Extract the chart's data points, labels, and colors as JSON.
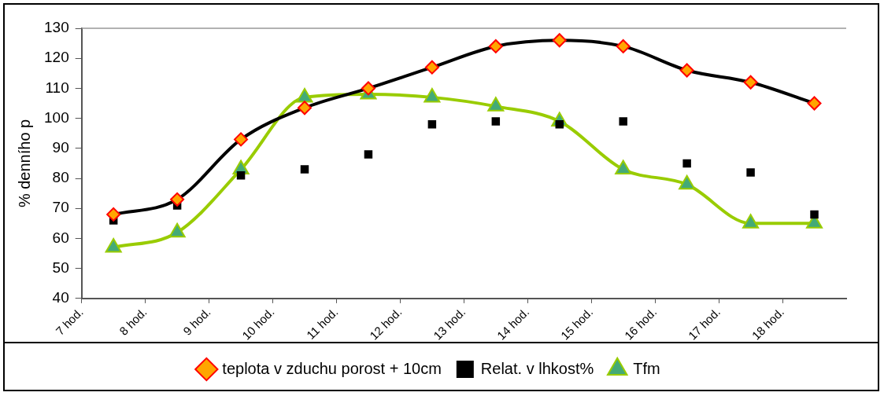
{
  "chart_data": {
    "type": "line",
    "ylabel": "% denního p",
    "x": [
      7.5,
      8.5,
      9.5,
      10.5,
      11.5,
      12.5,
      13.5,
      14.5,
      15.5,
      16.5,
      17.5,
      18.5
    ],
    "xlim": [
      7,
      19
    ],
    "xticks": [
      {
        "value": 7,
        "label": "7 hod."
      },
      {
        "value": 8,
        "label": "8 hod."
      },
      {
        "value": 9,
        "label": "9 hod."
      },
      {
        "value": 10,
        "label": "10 hod."
      },
      {
        "value": 11,
        "label": "11 hod."
      },
      {
        "value": 12,
        "label": "12 hod."
      },
      {
        "value": 13,
        "label": "13 hod."
      },
      {
        "value": 14,
        "label": "14 hod."
      },
      {
        "value": 15,
        "label": "15 hod."
      },
      {
        "value": 16,
        "label": "16 hod."
      },
      {
        "value": 17,
        "label": "17 hod."
      },
      {
        "value": 18,
        "label": "18 hod."
      }
    ],
    "ylim": [
      40,
      130
    ],
    "yticks": [
      40,
      50,
      60,
      70,
      80,
      90,
      100,
      110,
      120,
      130
    ],
    "grid": false,
    "legend": "bottom",
    "series": [
      {
        "name": "teplota v zduchu porost + 10cm",
        "marker": "diamond",
        "color": "#000000",
        "values": [
          68,
          73,
          93,
          103.5,
          110,
          117,
          124,
          126,
          124,
          116,
          112,
          105
        ]
      },
      {
        "name": "Relat. v lhkost%",
        "type": "scatter",
        "marker": "square",
        "color": "#000000",
        "values": [
          66,
          71,
          81,
          83,
          88,
          98,
          99,
          98,
          99,
          85,
          82,
          68
        ]
      },
      {
        "name": "Tfm",
        "marker": "triangle",
        "color": "#99cc00",
        "values": [
          57,
          62,
          83,
          107,
          108,
          107,
          104,
          99,
          83,
          78,
          65,
          65
        ]
      }
    ]
  }
}
